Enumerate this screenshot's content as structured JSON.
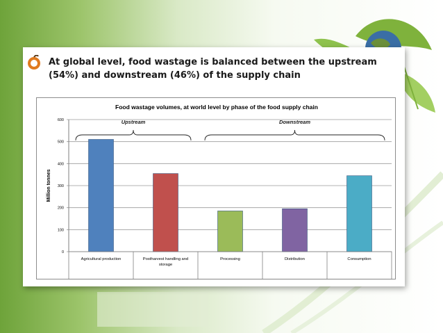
{
  "slide": {
    "title": "At global level, food wastage is balanced between the upstream (54%) and downstream (46%) of the supply chain"
  },
  "chart_data": {
    "type": "bar",
    "title": "Food wastage volumes, at world level by phase of the food supply chain",
    "ylabel": "Million tonnes",
    "xlabel": "",
    "ylim": [
      0,
      600
    ],
    "yticks": [
      0,
      100,
      200,
      300,
      400,
      500,
      600
    ],
    "grid": true,
    "categories": [
      "Agricultural production",
      "Postharvest handling and storage",
      "Processing",
      "Distribution",
      "Consumption"
    ],
    "values": [
      510,
      355,
      185,
      195,
      345
    ],
    "colors": [
      "#4f81bd",
      "#c0504d",
      "#9bbb59",
      "#8064a2",
      "#4bacc6"
    ],
    "groups": [
      {
        "label": "Upstream",
        "categories": [
          "Agricultural production",
          "Postharvest handling and storage"
        ]
      },
      {
        "label": "Downstream",
        "categories": [
          "Processing",
          "Distribution",
          "Consumption"
        ]
      }
    ]
  }
}
